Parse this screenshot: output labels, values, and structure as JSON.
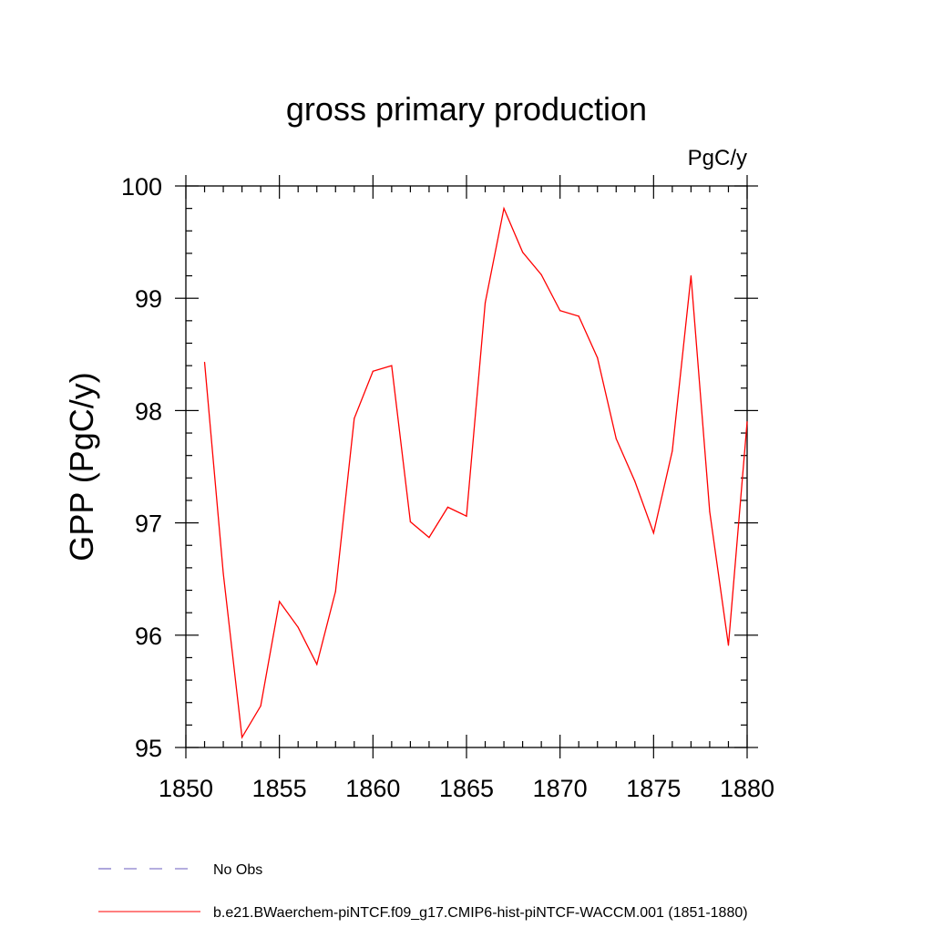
{
  "chart_data": {
    "type": "line",
    "title": "gross primary production",
    "units_label": "PgC/y",
    "xlabel": "",
    "ylabel": "GPP  (PgC/y)",
    "xlim": [
      1850,
      1880
    ],
    "ylim": [
      95,
      100
    ],
    "x_ticks": [
      "1850",
      "1855",
      "1860",
      "1865",
      "1870",
      "1875",
      "1880"
    ],
    "y_ticks": [
      "95",
      "96",
      "97",
      "98",
      "99",
      "100"
    ],
    "grid": false,
    "legend_placement": "bottom-left, below plot",
    "series": [
      {
        "name": "No Obs",
        "color": "#6b5cbf",
        "dash": "dashed",
        "x": [],
        "values": []
      },
      {
        "name": "b.e21.BWaerchem-piNTCF.f09_g17.CMIP6-hist-piNTCF-WACCM.001 (1851-1880)",
        "color": "#ff0000",
        "dash": "solid",
        "x": [
          1851,
          1852,
          1853,
          1854,
          1855,
          1856,
          1857,
          1858,
          1859,
          1860,
          1861,
          1862,
          1863,
          1864,
          1865,
          1866,
          1867,
          1868,
          1869,
          1870,
          1871,
          1872,
          1873,
          1874,
          1875,
          1876,
          1877,
          1878,
          1879,
          1880
        ],
        "values": [
          98.43,
          96.55,
          95.09,
          95.37,
          96.3,
          96.07,
          95.74,
          96.39,
          97.93,
          98.35,
          98.4,
          97.01,
          96.87,
          97.14,
          97.06,
          98.96,
          99.8,
          99.41,
          99.21,
          98.89,
          98.84,
          98.47,
          97.75,
          97.37,
          96.91,
          97.64,
          99.2,
          97.1,
          95.91,
          97.9
        ]
      }
    ]
  }
}
